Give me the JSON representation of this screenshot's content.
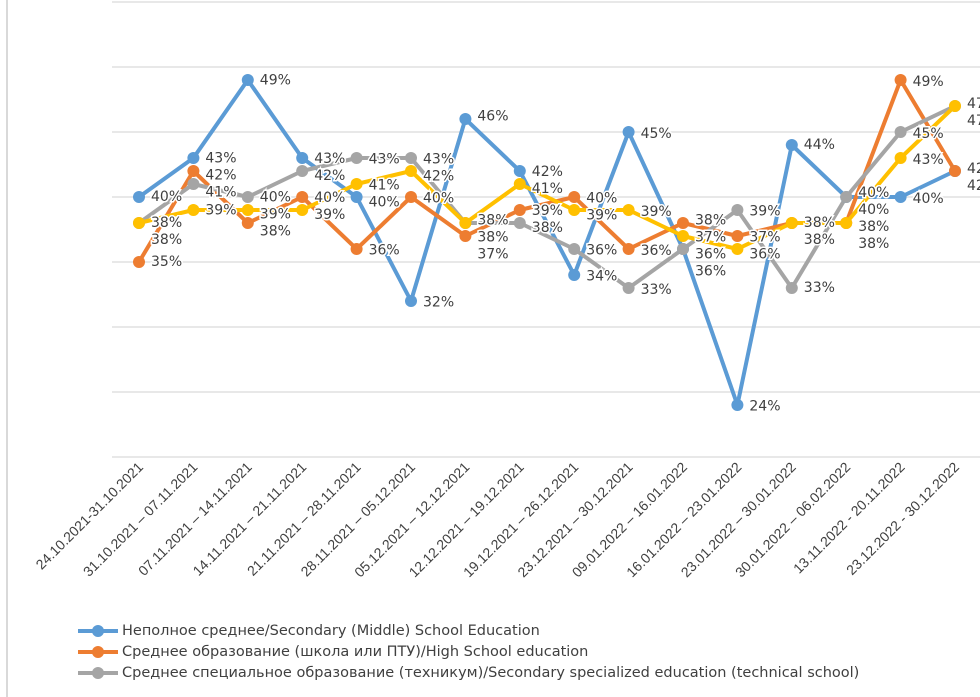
{
  "chart_data": {
    "type": "line",
    "title": "",
    "xlabel": "",
    "ylabel": "",
    "ylim": [
      20,
      55
    ],
    "y_gridlines": [
      20,
      25,
      30,
      35,
      40,
      45,
      50,
      55
    ],
    "grid": true,
    "legend_position": "bottom",
    "categories": [
      "24.10.2021-31.10.2021",
      "31.10.2021 – 07.11.2021",
      "07.11.2021 – 14.11.2021",
      "14.11.2021 – 21.11.2021",
      "21.11.2021 – 28.11.2021",
      "28.11.2021 – 05.12.2021",
      "05.12.2021 – 12.12.2021",
      "12.12.2021 – 19.12.2021",
      "19.12.2021 – 26.12.2021",
      "23.12.2021 – 30.12.2021",
      "09.01.2022 – 16.01.2022",
      "16.01.2022 – 23.01.2022",
      "23.01.2022 – 30.01.2022",
      "30.01.2022 – 06.02.2022",
      "13.11.2022 - 20.11.2022",
      "23.12.2022 - 30.12.2022"
    ],
    "series": [
      {
        "name": "Неполное среднее/Secondary (Middle) School Education",
        "color": "#5b9bd5",
        "values": [
          40,
          43,
          49,
          43,
          40,
          32,
          46,
          42,
          34,
          45,
          36,
          24,
          44,
          40,
          40,
          42
        ]
      },
      {
        "name": "Среднее образование (школа или ПТУ)/High School education",
        "color": "#ed7d31",
        "values": [
          35,
          42,
          38,
          40,
          36,
          40,
          37,
          39,
          40,
          36,
          38,
          37,
          38,
          38,
          49,
          42
        ]
      },
      {
        "name": "Среднее специальное образование (техникум)/Secondary specialized education (technical school)",
        "color": "#a5a5a5",
        "values": [
          38,
          41,
          40,
          42,
          43,
          43,
          38,
          38,
          36,
          33,
          36,
          39,
          33,
          40,
          45,
          47
        ]
      },
      {
        "name": "",
        "color": "#ffc000",
        "values": [
          38,
          39,
          39,
          39,
          41,
          42,
          38,
          41,
          39,
          39,
          37,
          36,
          38,
          38,
          43,
          47
        ]
      }
    ],
    "value_suffix": "%"
  }
}
